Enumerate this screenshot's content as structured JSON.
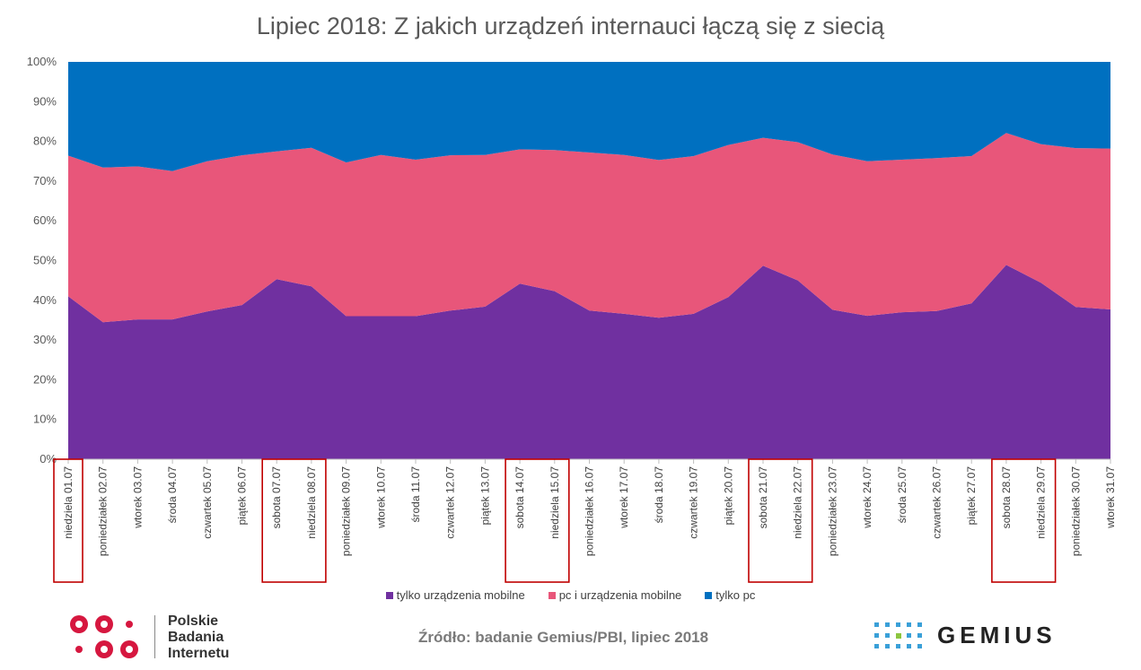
{
  "title": "Lipiec 2018: Z jakich urządzeń internauci łączą się z siecią",
  "chart_data": {
    "type": "area",
    "stacked": true,
    "percent": true,
    "ylim": [
      0,
      100
    ],
    "yticks": [
      "0%",
      "10%",
      "20%",
      "30%",
      "40%",
      "50%",
      "60%",
      "70%",
      "80%",
      "90%",
      "100%"
    ],
    "categories": [
      "niedziela 01.07",
      "poniedziałek 02.07",
      "wtorek 03.07",
      "środa 04.07",
      "czwartek 05.07",
      "piątek 06.07",
      "sobota 07.07",
      "niedziela 08.07",
      "poniedziałek 09.07",
      "wtorek 10.07",
      "środa 11.07",
      "czwartek 12.07",
      "piątek 13.07",
      "sobota 14.07",
      "niedziela 15.07",
      "poniedziałek 16.07",
      "wtorek 17.07",
      "środa 18.07",
      "czwartek 19.07",
      "piątek 20.07",
      "sobota 21.07",
      "niedziela 22.07",
      "poniedziałek 23.07",
      "wtorek 24.07",
      "środa 25.07",
      "czwartek 26.07",
      "piątek 27.07",
      "sobota 28.07",
      "niedziela 29.07",
      "poniedziałek 30.07",
      "wtorek 31.07"
    ],
    "series": [
      {
        "name": "tylko urządzenia mobilne",
        "color": "#7030a0",
        "values": [
          41,
          34.5,
          35.2,
          35.2,
          37.2,
          38.8,
          45.3,
          43.5,
          36,
          36,
          36,
          37.4,
          38.4,
          44.2,
          42.3,
          37.4,
          36.6,
          35.6,
          36.6,
          40.8,
          48.7,
          45,
          37.6,
          36.1,
          37,
          37.3,
          39.2,
          48.9,
          44.4,
          38.3,
          37.7
        ]
      },
      {
        "name": "pc i urządzenia mobilne",
        "color": "#e8567a",
        "values": [
          35.4,
          38.9,
          38.5,
          37.3,
          37.8,
          37.7,
          32.2,
          34.9,
          38.7,
          40.6,
          39.4,
          39.1,
          38.2,
          33.8,
          35.5,
          39.8,
          40,
          39.7,
          39.7,
          38.3,
          32.2,
          34.8,
          39.1,
          38.9,
          38.4,
          38.5,
          37.1,
          33.2,
          34.9,
          40,
          40.5
        ]
      },
      {
        "name": "tylko pc",
        "color": "#0070c0",
        "values": [
          23.6,
          26.6,
          26.3,
          27.5,
          25,
          23.5,
          22.5,
          21.6,
          25.3,
          23.4,
          24.6,
          23.5,
          23.4,
          22,
          22.2,
          22.8,
          23.4,
          24.7,
          23.7,
          20.9,
          19.1,
          20.2,
          23.3,
          25,
          24.6,
          24.2,
          23.7,
          17.9,
          20.7,
          21.7,
          21.8
        ]
      }
    ],
    "highlighted_groups": [
      [
        0
      ],
      [
        6,
        7
      ],
      [
        13,
        14
      ],
      [
        20,
        21
      ],
      [
        27,
        28
      ]
    ],
    "highlight_color": "#c00000",
    "legend_position": "bottom",
    "grid": false
  },
  "footer": {
    "pbi_lines": [
      "Polskie",
      "Badania",
      "Internetu"
    ],
    "source": "Źródło: badanie Gemius/PBI, lipiec 2018",
    "gemius": "GEMIUS",
    "pbi_color": "#d6173f"
  }
}
